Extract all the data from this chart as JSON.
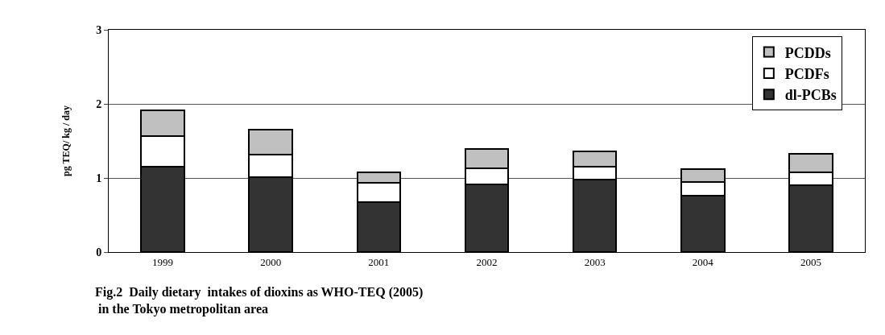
{
  "chart_data": {
    "type": "bar",
    "stacked": true,
    "title": "Fig.2  Daily dietary  intakes of dioxins as WHO-TEQ (2005)\n in the Tokyo metropolitan area",
    "ylabel": "pg TEQ/ kg / day",
    "categories": [
      "1999",
      "2000",
      "2001",
      "2002",
      "2003",
      "2004",
      "2005"
    ],
    "series": [
      {
        "name": "dl-PCBs",
        "color": "#333333",
        "values": [
          1.15,
          1.01,
          0.67,
          0.91,
          0.98,
          0.76,
          0.9
        ]
      },
      {
        "name": "PCDFs",
        "color": "#ffffff",
        "values": [
          0.42,
          0.31,
          0.26,
          0.22,
          0.17,
          0.19,
          0.18
        ]
      },
      {
        "name": "PCDDs",
        "color": "#c0c0c0",
        "values": [
          0.34,
          0.33,
          0.15,
          0.26,
          0.21,
          0.17,
          0.25
        ]
      }
    ],
    "ylim": [
      0,
      3
    ],
    "yticks": [
      0,
      1,
      2,
      3
    ],
    "grid": "y",
    "legend": "top right"
  }
}
